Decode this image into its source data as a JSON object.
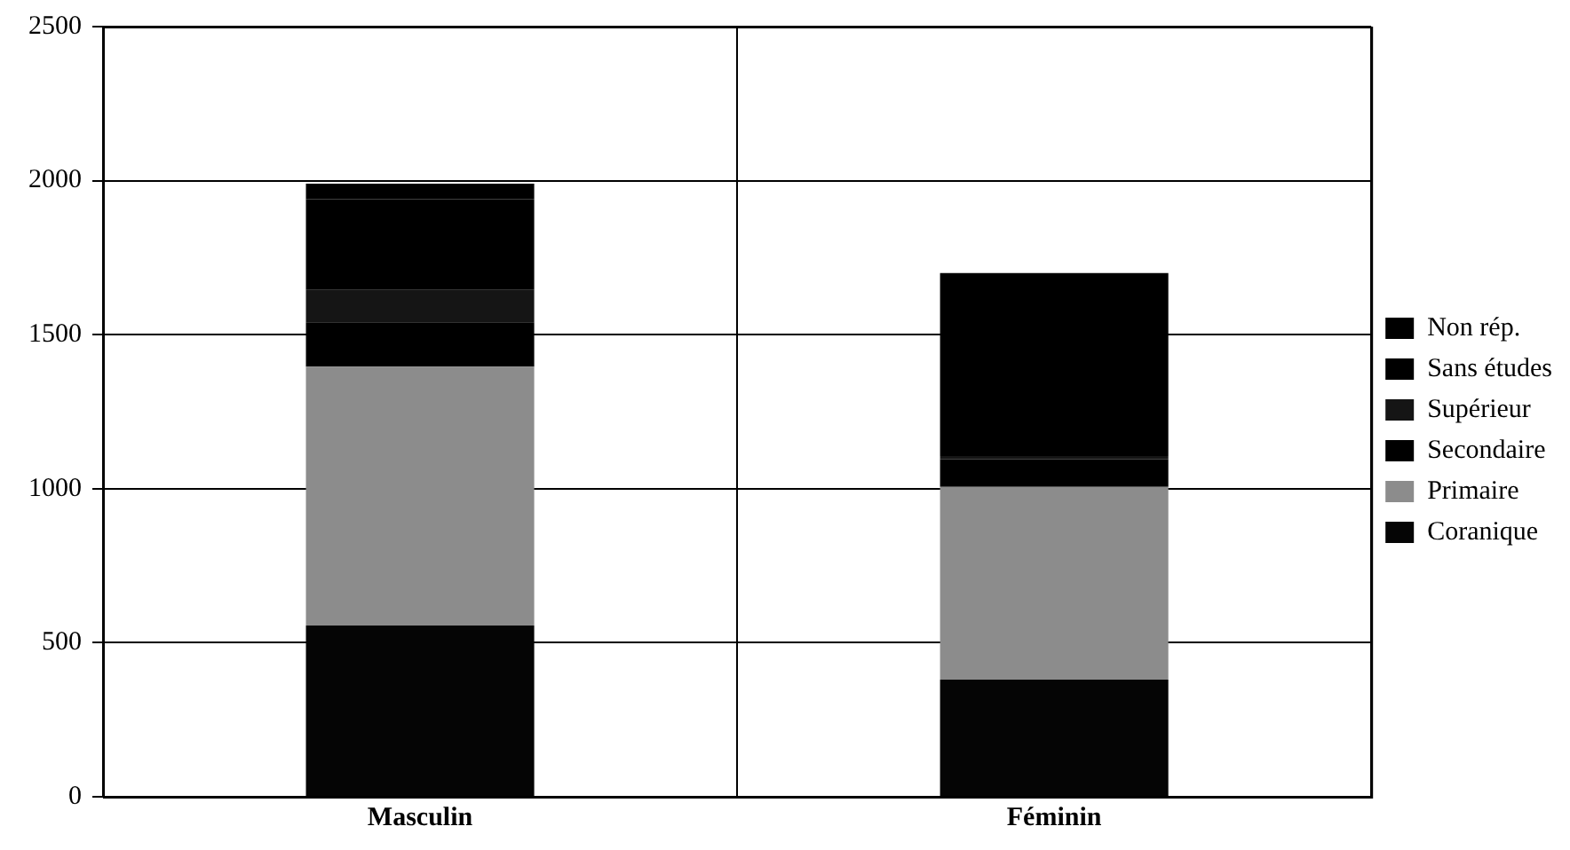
{
  "chart_data": {
    "type": "bar",
    "stacked": true,
    "categories": [
      "Masculin",
      "Féminin"
    ],
    "series": [
      {
        "name": "Coranique",
        "color": "#050505",
        "values": [
          556,
          380
        ]
      },
      {
        "name": "Primaire",
        "color": "#8c8c8c",
        "values": [
          840,
          626
        ]
      },
      {
        "name": "Secondaire",
        "color": "#000000",
        "values": [
          144,
          90
        ]
      },
      {
        "name": "Supérieur",
        "color": "#151515",
        "values": [
          105,
          10
        ]
      },
      {
        "name": "Sans études",
        "color": "#000000",
        "values": [
          295,
          544
        ]
      },
      {
        "name": "Non rép.",
        "color": "#000000",
        "values": [
          50,
          50
        ]
      }
    ],
    "ylim": [
      0,
      2500
    ],
    "yticks": [
      0,
      500,
      1000,
      1500,
      2000,
      2500
    ],
    "grid": true,
    "legend": "right"
  }
}
